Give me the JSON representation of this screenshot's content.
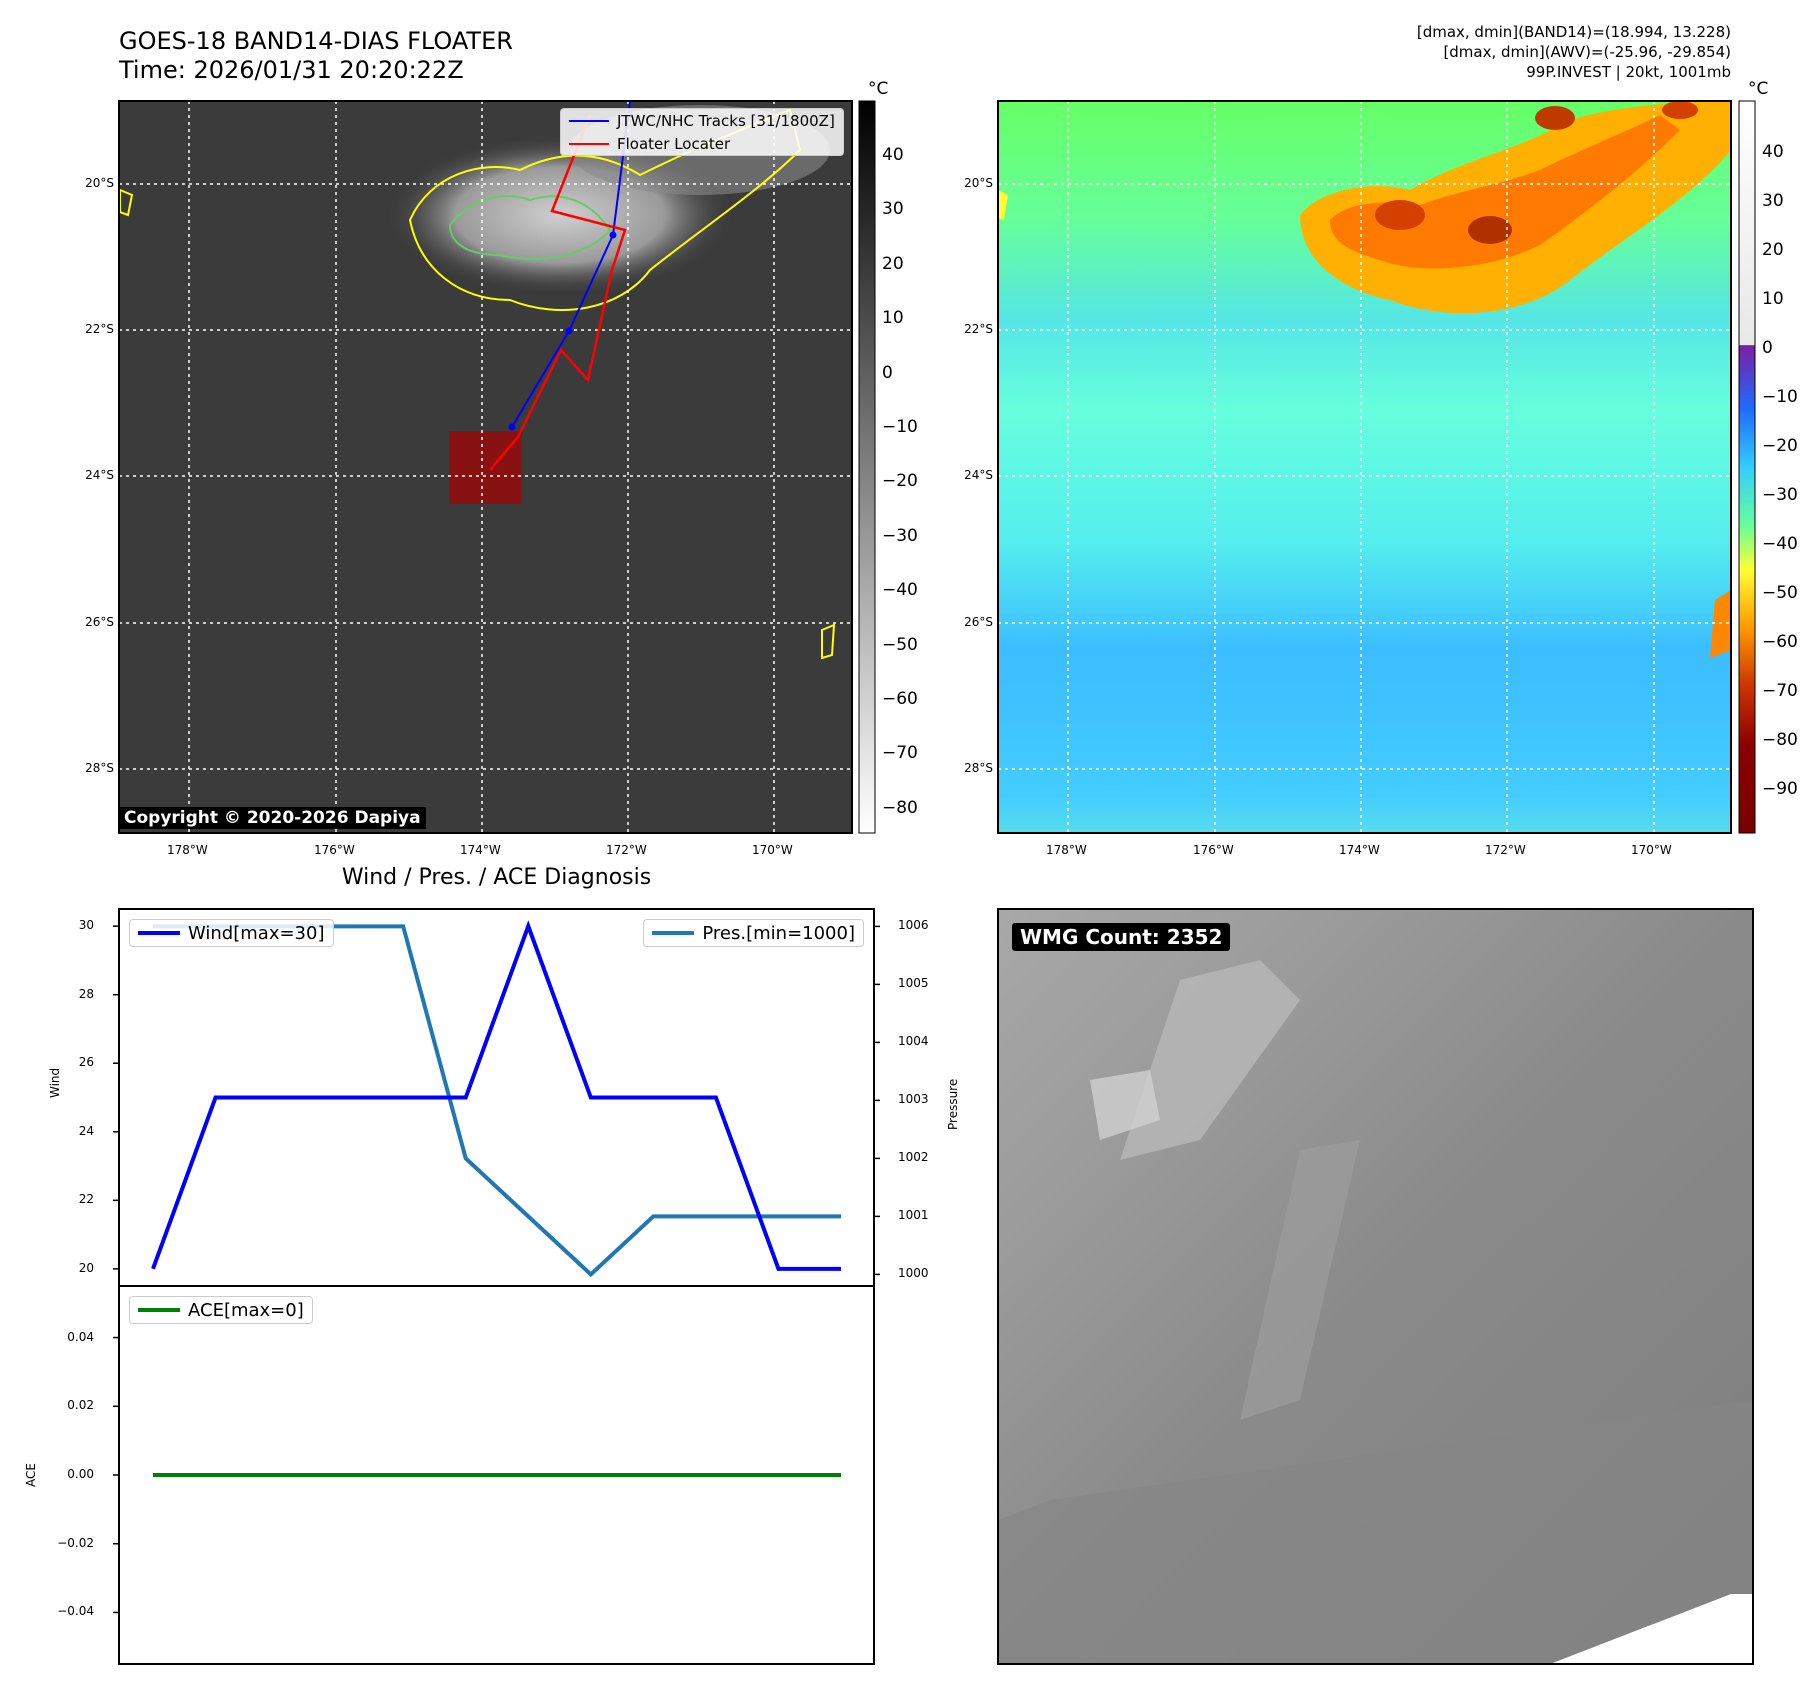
{
  "header": {
    "title_line1": "GOES-18 BAND14-DIAS FLOATER",
    "title_line2": "Time: 2026/01/31 20:20:22Z",
    "info_line1": "[dmax, dmin](BAND14)=(18.994, 13.228)",
    "info_line2": "[dmax, dmin](AWV)=(-25.96, -29.854)",
    "info_line3": "99P.INVEST | 20kt, 1001mb"
  },
  "maps": {
    "lat_labels": [
      "20°S",
      "22°S",
      "24°S",
      "26°S",
      "28°S"
    ],
    "lon_labels": [
      "178°W",
      "176°W",
      "174°W",
      "172°W",
      "170°W"
    ],
    "copyright": "Copyright © 2020-2026 Dapiya",
    "legend": [
      {
        "label": "JTWC/NHC Tracks [31/1800Z]",
        "color": "#0000ff"
      },
      {
        "label": "Floater Locater",
        "color": "#ff0000"
      }
    ],
    "cb_unit": "°C",
    "cb_left_ticks": [
      "40",
      "30",
      "20",
      "10",
      "0",
      "−10",
      "−20",
      "−30",
      "−40",
      "−50",
      "−60",
      "−70",
      "−80"
    ],
    "cb_right_ticks": [
      "40",
      "30",
      "20",
      "10",
      "0",
      "−10",
      "−20",
      "−30",
      "−40",
      "−50",
      "−60",
      "−70",
      "−80",
      "−90"
    ]
  },
  "diagnosis_title": "Wind / Pres. / ACE Diagnosis",
  "wmg_label": "WMG Count: 2352",
  "chart_data": [
    {
      "type": "line",
      "title": "Wind / Pres. / ACE Diagnosis",
      "x": [
        0,
        1,
        2,
        3,
        4,
        5,
        6,
        7,
        8,
        9,
        10,
        11
      ],
      "series": [
        {
          "name": "Wind[max=30]",
          "axis": "left",
          "color": "#0000ff",
          "values": [
            20,
            25,
            25,
            25,
            25,
            25,
            30,
            25,
            25,
            25,
            20,
            20
          ]
        },
        {
          "name": "Pres.[min=1000]",
          "axis": "right",
          "color": "#1f77b4",
          "values": [
            1006,
            1006,
            1006,
            1006,
            1006,
            1002,
            1001,
            1000,
            1001,
            1001,
            1001,
            1001
          ]
        }
      ],
      "ylabel": "Wind",
      "y2label": "Pressure",
      "ylim": [
        19.5,
        30.5
      ],
      "y2lim": [
        999.8,
        1006.3
      ],
      "yticks": [
        "30",
        "28",
        "26",
        "24",
        "22",
        "20"
      ],
      "y2ticks": [
        "1006",
        "1005",
        "1004",
        "1003",
        "1002",
        "1001",
        "1000"
      ]
    },
    {
      "type": "line",
      "series": [
        {
          "name": "ACE[max=0]",
          "color": "#008000",
          "values": [
            0,
            0,
            0,
            0,
            0,
            0,
            0,
            0,
            0,
            0,
            0,
            0
          ]
        }
      ],
      "ylabel": "ACE",
      "ylim": [
        -0.055,
        0.055
      ],
      "yticks": [
        "0.04",
        "0.02",
        "0.00",
        "−0.02",
        "−0.04"
      ]
    }
  ]
}
